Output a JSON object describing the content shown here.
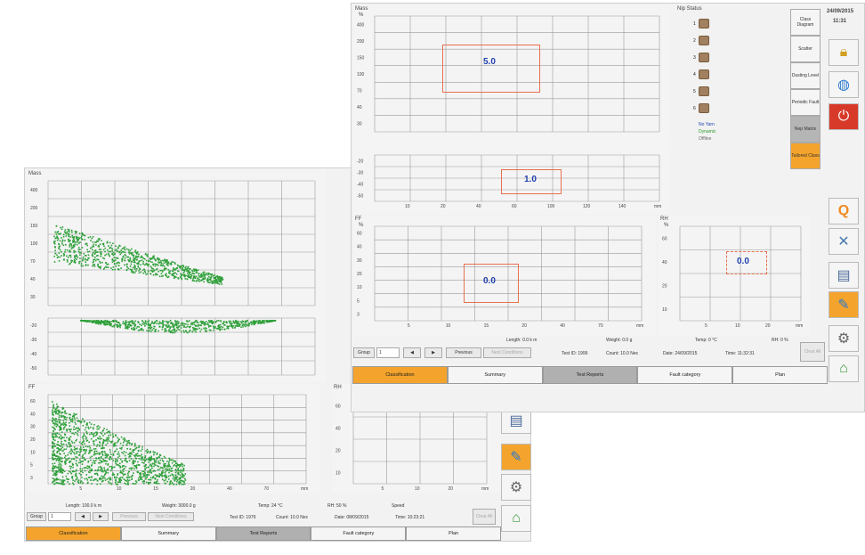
{
  "front": {
    "chart_labels": {
      "mass": "Mass",
      "mass_unit": "%",
      "ff": "FF",
      "ff_unit": "%",
      "rh": "RH",
      "rh_unit": "%",
      "mm": "mm"
    },
    "mass_values": "5.0",
    "neg_values": "1.0",
    "ff_value": "0.0",
    "rh_value": "0.0",
    "mass_yticks": [
      "400",
      "200",
      "150",
      "100",
      "70",
      "40",
      "30"
    ],
    "neg_yticks": [
      "-20",
      "-30",
      "-40",
      "-50"
    ],
    "x_ticks": [
      "10",
      "20",
      "40",
      "60",
      "100",
      "120",
      "140",
      "mm"
    ],
    "ff_yticks": [
      "60",
      "40",
      "30",
      "20",
      "10",
      "5",
      "3"
    ],
    "ff_xticks": [
      "5",
      "10",
      "15",
      "20",
      "40",
      "70",
      "mm"
    ],
    "rh_yticks": [
      "60",
      "40",
      "20",
      "10"
    ],
    "rh_xticks": [
      "5",
      "10",
      "20",
      "mm"
    ],
    "info": {
      "length": "Length: 0.0 k m",
      "weight": "Weight: 0.0 g",
      "temp": "Temp: 0 °C",
      "rh": "RH: 0 %",
      "test_id": "Test ID: 1999",
      "count": "Count: 10.0 Nec",
      "date": "Date: 24/09/2015",
      "time": "Time: 11:32:31"
    },
    "controls": {
      "group": "Group",
      "group_value": "1",
      "previous": "Previous",
      "next": "Next Conditions",
      "clear": "Clear All"
    },
    "nip_status": "Nip Status",
    "nips": [
      "1",
      "2",
      "3",
      "4",
      "5",
      "6"
    ],
    "legend": [
      "No Yarn",
      "Dynamic",
      "Offline"
    ],
    "side_buttons": [
      "Class Diagram",
      "Scatter",
      "Dusting Level",
      "Periodic Fault",
      "Nep Matrix",
      "Tailored Class"
    ],
    "datetime": {
      "date": "24/09/2015",
      "time": "11:31"
    },
    "icons": [
      "lock-icon",
      "globe-icon",
      "power-icon",
      "q-icon",
      "tools-icon",
      "printer-icon",
      "edit-icon",
      "settings-icon",
      "home-icon"
    ],
    "tabs": [
      "Classification",
      "Summary",
      "Test Reports",
      "Fault category",
      "Plan"
    ]
  },
  "back": {
    "chart_labels": {
      "mass": "Mass",
      "ff": "FF",
      "rh": "RH",
      "mm": "mm"
    },
    "info": {
      "length": "Length: 100.0 k m",
      "weight": "Weight: 3000.0 g",
      "temp": "Temp: 24 °C",
      "rh": "RH: 50 %",
      "speed": "Speed",
      "test_id": "Test ID: 1979",
      "count": "Count: 10.0 Nec",
      "date": "Date: 08/09/2015",
      "time": "Time: 10:23:21"
    },
    "controls": {
      "group": "Group",
      "group_value": "1",
      "previous": "Previous",
      "next": "Next Conditions",
      "clear": "Clear All"
    },
    "tabs": [
      "Classification",
      "Summary",
      "Test Reports",
      "Fault category",
      "Plan"
    ],
    "icons": [
      "tools-icon",
      "printer-icon",
      "edit-icon",
      "settings-icon",
      "home-icon"
    ]
  },
  "colors": {
    "accent": "#f4a42c",
    "selected_tab": "#b0b0b0",
    "value_blue": "#1f3fae",
    "scatter": "#2fa03a",
    "box": "#e8704f"
  }
}
